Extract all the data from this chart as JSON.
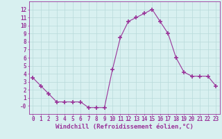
{
  "x": [
    0,
    1,
    2,
    3,
    4,
    5,
    6,
    7,
    8,
    9,
    10,
    11,
    12,
    13,
    14,
    15,
    16,
    17,
    18,
    19,
    20,
    21,
    22,
    23
  ],
  "y": [
    3.5,
    2.5,
    1.5,
    0.5,
    0.5,
    0.5,
    0.5,
    -0.2,
    -0.2,
    -0.2,
    4.5,
    8.5,
    10.5,
    11.0,
    11.5,
    12.0,
    10.5,
    9.0,
    6.0,
    4.2,
    3.7,
    3.7,
    3.7,
    2.5
  ],
  "line_color": "#993399",
  "marker": "+",
  "markersize": 4,
  "markeredgewidth": 1.2,
  "bg_color": "#d8f0f0",
  "grid_color": "#b8dada",
  "xlabel": "Windchill (Refroidissement éolien,°C)",
  "ylabel": "",
  "ylim": [
    -1,
    13
  ],
  "xlim": [
    -0.5,
    23.5
  ],
  "yticks": [
    0,
    1,
    2,
    3,
    4,
    5,
    6,
    7,
    8,
    9,
    10,
    11,
    12
  ],
  "ytick_labels": [
    "-0",
    "1",
    "2",
    "3",
    "4",
    "5",
    "6",
    "7",
    "8",
    "9",
    "10",
    "11",
    "12"
  ],
  "xticks": [
    0,
    1,
    2,
    3,
    4,
    5,
    6,
    7,
    8,
    9,
    10,
    11,
    12,
    13,
    14,
    15,
    16,
    17,
    18,
    19,
    20,
    21,
    22,
    23
  ],
  "tick_color": "#993399",
  "axis_color": "#993399",
  "label_fontsize": 6.5,
  "tick_fontsize": 5.5
}
